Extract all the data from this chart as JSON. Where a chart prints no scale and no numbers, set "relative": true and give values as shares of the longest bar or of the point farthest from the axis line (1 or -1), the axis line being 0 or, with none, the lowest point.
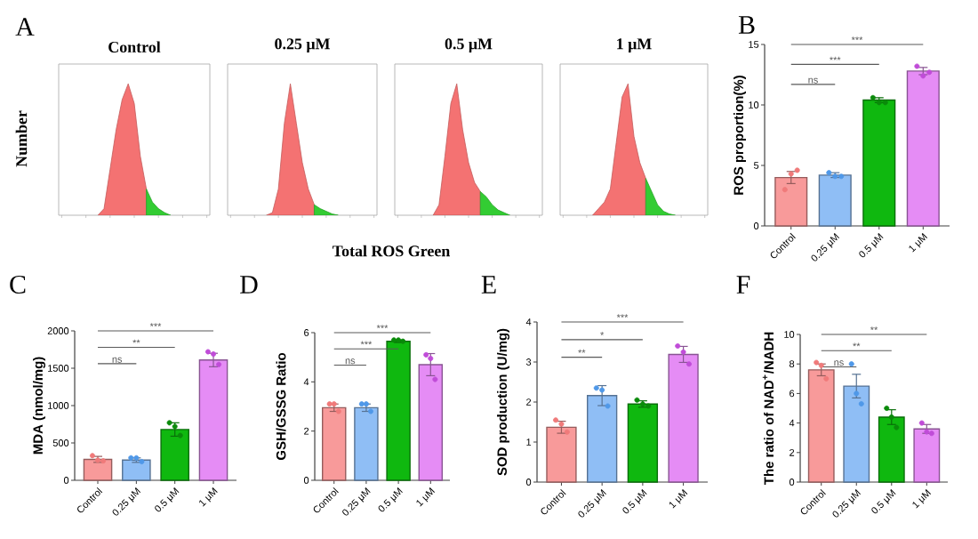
{
  "chart_data": [
    {
      "type": "area",
      "title": "Control",
      "ylabel": "Number",
      "annotations": [
        "A",
        "Total ROS Green"
      ],
      "relative": true,
      "categories": [
        null,
        null,
        null,
        null,
        null,
        null,
        null,
        null,
        null,
        null,
        null,
        null,
        null,
        null,
        null,
        null,
        null,
        null,
        null,
        null,
        null,
        null,
        null,
        null,
        null
      ],
      "series": [
        {
          "color": "#f47272",
          "values": [
            null,
            null,
            null,
            null,
            null,
            null,
            0,
            0.05,
            0.35,
            0.65,
            0.88,
            1.0,
            0.85,
            0.45,
            0.2,
            null,
            null,
            null,
            null,
            null,
            null,
            null,
            null,
            null,
            null
          ]
        },
        {
          "color": "#33cc33",
          "values": [
            null,
            null,
            null,
            null,
            null,
            null,
            null,
            null,
            null,
            null,
            null,
            null,
            null,
            null,
            0.2,
            0.1,
            0.05,
            0.02,
            0,
            null,
            null,
            null,
            null,
            null,
            null
          ]
        }
      ]
    },
    {
      "type": "area",
      "title": "0.25 μM",
      "relative": true,
      "categories": [
        null,
        null,
        null,
        null,
        null,
        null,
        null,
        null,
        null,
        null,
        null,
        null,
        null,
        null,
        null,
        null,
        null,
        null,
        null,
        null,
        null,
        null,
        null,
        null,
        null
      ],
      "series": [
        {
          "color": "#f47272",
          "values": [
            null,
            null,
            null,
            null,
            null,
            null,
            0,
            0.02,
            0.2,
            0.7,
            1.0,
            0.7,
            0.4,
            0.2,
            0.08,
            null,
            null,
            null,
            null,
            null,
            null,
            null,
            null,
            null,
            null
          ]
        },
        {
          "color": "#33cc33",
          "values": [
            null,
            null,
            null,
            null,
            null,
            null,
            null,
            null,
            null,
            null,
            null,
            null,
            null,
            null,
            0.08,
            0.05,
            0.03,
            0.01,
            0,
            null,
            null,
            null,
            null,
            null,
            null
          ]
        }
      ]
    },
    {
      "type": "area",
      "title": "0.5 μM",
      "relative": true,
      "categories": [
        null,
        null,
        null,
        null,
        null,
        null,
        null,
        null,
        null,
        null,
        null,
        null,
        null,
        null,
        null,
        null,
        null,
        null,
        null,
        null,
        null,
        null,
        null,
        null,
        null
      ],
      "series": [
        {
          "color": "#f47272",
          "values": [
            null,
            null,
            null,
            null,
            null,
            null,
            0,
            0.08,
            0.45,
            0.85,
            1.0,
            0.65,
            0.4,
            0.25,
            0.18,
            null,
            null,
            null,
            null,
            null,
            null,
            null,
            null,
            null,
            null
          ]
        },
        {
          "color": "#33cc33",
          "values": [
            null,
            null,
            null,
            null,
            null,
            null,
            null,
            null,
            null,
            null,
            null,
            null,
            null,
            null,
            0.18,
            0.14,
            0.08,
            0.04,
            0.02,
            0,
            null,
            null,
            null,
            null,
            null
          ]
        }
      ]
    },
    {
      "type": "area",
      "title": "1 μM",
      "relative": true,
      "categories": [
        null,
        null,
        null,
        null,
        null,
        null,
        null,
        null,
        null,
        null,
        null,
        null,
        null,
        null,
        null,
        null,
        null,
        null,
        null,
        null,
        null,
        null,
        null,
        null,
        null
      ],
      "series": [
        {
          "color": "#f47272",
          "values": [
            null,
            null,
            null,
            null,
            null,
            0,
            0.05,
            0.1,
            0.2,
            0.55,
            0.9,
            1.0,
            0.6,
            0.4,
            0.28,
            null,
            null,
            null,
            null,
            null,
            null,
            null,
            null,
            null,
            null
          ]
        },
        {
          "color": "#33cc33",
          "values": [
            null,
            null,
            null,
            null,
            null,
            null,
            null,
            null,
            null,
            null,
            null,
            null,
            null,
            null,
            0.28,
            0.18,
            0.08,
            0.03,
            0.01,
            0,
            null,
            null,
            null,
            null,
            null
          ]
        }
      ]
    },
    {
      "type": "bar",
      "ylabel": "ROS proportion(%)",
      "annotations": [
        "B",
        "ns",
        "***",
        "***"
      ],
      "ylim": [
        0,
        15
      ],
      "yticks": [
        0,
        5,
        10,
        15
      ],
      "categories": [
        "Control",
        "0.25 μM",
        "0.5 μM",
        "1 μM"
      ],
      "series": [
        {
          "type": "bar",
          "colors": [
            "#f89a9a",
            "#8fbef5",
            "#0fb80f",
            "#e58cf5"
          ],
          "values": [
            4.0,
            4.2,
            10.4,
            12.8
          ],
          "errors": [
            0.5,
            0.2,
            0.2,
            0.3
          ]
        },
        {
          "type": "scatter",
          "x": [
            "Control",
            "Control",
            "Control",
            "0.25 μM",
            "0.25 μM",
            "0.25 μM",
            "0.5 μM",
            "0.5 μM",
            "0.5 μM",
            "1 μM",
            "1 μM",
            "1 μM"
          ],
          "values": [
            3.0,
            4.3,
            4.6,
            4.4,
            4.1,
            4.1,
            10.6,
            10.2,
            10.2,
            13.2,
            12.4,
            12.7
          ],
          "colors": [
            "#f07a7a",
            "#f07a7a",
            "#f07a7a",
            "#4f98e8",
            "#4f98e8",
            "#4f98e8",
            "#0a8a0a",
            "#0a8a0a",
            "#0a8a0a",
            "#c04cd8",
            "#c04cd8",
            "#c04cd8"
          ]
        }
      ]
    },
    {
      "type": "bar",
      "ylabel": "MDA (nmol/mg)",
      "annotations": [
        "C",
        "ns",
        "**",
        "***"
      ],
      "ylim": [
        0,
        2000
      ],
      "yticks": [
        0,
        500,
        1000,
        1500,
        2000
      ],
      "categories": [
        "Control",
        "0.25 μM",
        "0.5 μM",
        "1 μM"
      ],
      "series": [
        {
          "type": "bar",
          "colors": [
            "#f89a9a",
            "#8fbef5",
            "#0fb80f",
            "#e58cf5"
          ],
          "values": [
            280,
            270,
            680,
            1610
          ],
          "errors": [
            40,
            30,
            90,
            90
          ]
        },
        {
          "type": "scatter",
          "x": [
            "Control",
            "Control",
            "Control",
            "0.25 μM",
            "0.25 μM",
            "0.25 μM",
            "0.5 μM",
            "0.5 μM",
            "0.5 μM",
            "1 μM",
            "1 μM",
            "1 μM"
          ],
          "values": [
            330,
            270,
            260,
            300,
            300,
            250,
            770,
            720,
            600,
            1720,
            1690,
            1550
          ],
          "colors": [
            "#f07a7a",
            "#f07a7a",
            "#f07a7a",
            "#4f98e8",
            "#4f98e8",
            "#4f98e8",
            "#0a8a0a",
            "#0a8a0a",
            "#0a8a0a",
            "#c04cd8",
            "#c04cd8",
            "#c04cd8"
          ]
        }
      ]
    },
    {
      "type": "bar",
      "ylabel": "GSH/GSSG Ratio",
      "annotations": [
        "D",
        "ns",
        "***",
        "***"
      ],
      "ylim": [
        0,
        6
      ],
      "yticks": [
        0,
        2,
        4,
        6
      ],
      "categories": [
        "Control",
        "0.25 μM",
        "0.5 μM",
        "1 μM"
      ],
      "series": [
        {
          "type": "bar",
          "colors": [
            "#f89a9a",
            "#8fbef5",
            "#0fb80f",
            "#e58cf5"
          ],
          "values": [
            2.95,
            2.95,
            5.65,
            4.7
          ],
          "errors": [
            0.15,
            0.15,
            0.05,
            0.45
          ]
        },
        {
          "type": "scatter",
          "x": [
            "Control",
            "Control",
            "Control",
            "0.25 μM",
            "0.25 μM",
            "0.25 μM",
            "0.5 μM",
            "0.5 μM",
            "0.5 μM",
            "1 μM",
            "1 μM",
            "1 μM"
          ],
          "values": [
            3.1,
            3.1,
            2.8,
            3.1,
            3.1,
            2.8,
            5.7,
            5.7,
            5.65,
            5.1,
            4.95,
            4.1
          ],
          "colors": [
            "#f07a7a",
            "#f07a7a",
            "#f07a7a",
            "#4f98e8",
            "#4f98e8",
            "#4f98e8",
            "#0a8a0a",
            "#0a8a0a",
            "#0a8a0a",
            "#c04cd8",
            "#c04cd8",
            "#c04cd8"
          ]
        }
      ]
    },
    {
      "type": "bar",
      "ylabel": "SOD production (U/mg)",
      "annotations": [
        "E",
        "**",
        "*",
        "***"
      ],
      "ylim": [
        0,
        4
      ],
      "yticks": [
        0,
        1,
        2,
        3,
        4
      ],
      "categories": [
        "Control",
        "0.25 μM",
        "0.5 μM",
        "1 μM"
      ],
      "series": [
        {
          "type": "bar",
          "colors": [
            "#f89a9a",
            "#8fbef5",
            "#0fb80f",
            "#e58cf5"
          ],
          "values": [
            1.37,
            2.16,
            1.95,
            3.19
          ],
          "errors": [
            0.15,
            0.25,
            0.08,
            0.2
          ]
        },
        {
          "type": "scatter",
          "x": [
            "Control",
            "Control",
            "Control",
            "0.25 μM",
            "0.25 μM",
            "0.25 μM",
            "0.5 μM",
            "0.5 μM",
            "0.5 μM",
            "1 μM",
            "1 μM",
            "1 μM"
          ],
          "values": [
            1.55,
            1.45,
            1.25,
            2.35,
            2.3,
            1.9,
            2.05,
            1.95,
            1.9,
            3.4,
            3.25,
            2.95
          ],
          "colors": [
            "#f07a7a",
            "#f07a7a",
            "#f07a7a",
            "#4f98e8",
            "#4f98e8",
            "#4f98e8",
            "#0a8a0a",
            "#0a8a0a",
            "#0a8a0a",
            "#c04cd8",
            "#c04cd8",
            "#c04cd8"
          ]
        }
      ]
    },
    {
      "type": "bar",
      "ylabel": "The ratio of NAD$^{+}$/NADH",
      "annotations": [
        "F",
        "ns",
        "**",
        "**"
      ],
      "ylim": [
        0,
        10
      ],
      "yticks": [
        0,
        2,
        4,
        6,
        8,
        10
      ],
      "categories": [
        "Control",
        "0.25 μM",
        "0.5 μM",
        "1 μM"
      ],
      "series": [
        {
          "type": "bar",
          "colors": [
            "#f89a9a",
            "#8fbef5",
            "#0fb80f",
            "#e58cf5"
          ],
          "values": [
            7.6,
            6.5,
            4.4,
            3.6
          ],
          "errors": [
            0.4,
            0.8,
            0.5,
            0.3
          ]
        },
        {
          "type": "scatter",
          "x": [
            "Control",
            "Control",
            "Control",
            "0.25 μM",
            "0.25 μM",
            "0.25 μM",
            "0.5 μM",
            "0.5 μM",
            "0.5 μM",
            "1 μM",
            "1 μM",
            "1 μM"
          ],
          "values": [
            8.1,
            7.9,
            7.0,
            8.0,
            6.0,
            5.3,
            5.0,
            4.4,
            3.7,
            4.0,
            3.4,
            3.3
          ],
          "colors": [
            "#f07a7a",
            "#f07a7a",
            "#f07a7a",
            "#4f98e8",
            "#4f98e8",
            "#4f98e8",
            "#0a8a0a",
            "#0a8a0a",
            "#0a8a0a",
            "#c04cd8",
            "#c04cd8",
            "#c04cd8"
          ]
        }
      ]
    }
  ]
}
